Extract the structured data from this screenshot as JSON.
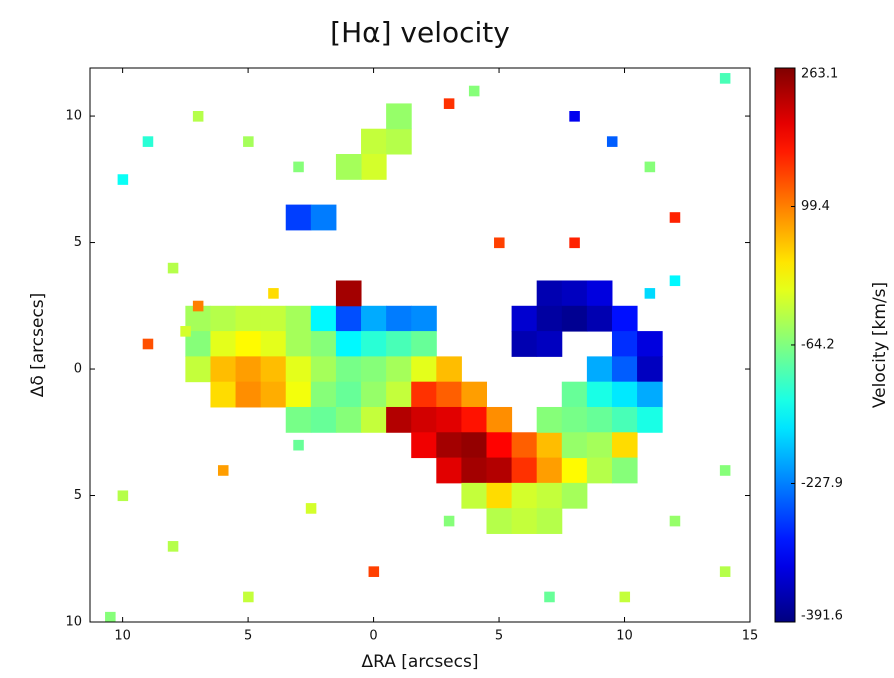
{
  "chart_data": {
    "type": "heatmap",
    "title": "[Hα] velocity",
    "x_label": "ΔRA [arcsecs]",
    "y_label": "Δδ [arcsecs]",
    "colorbar_label": "Velocity [km/s]",
    "colormap": "jet",
    "xlim": [
      -11.3,
      15
    ],
    "ylim": [
      -10,
      11.9
    ],
    "xticks": [
      {
        "value": -10,
        "label": "10"
      },
      {
        "value": -5,
        "label": "5"
      },
      0,
      5,
      10,
      15
    ],
    "yticks": [
      {
        "value": -10,
        "label": "10"
      },
      {
        "value": -5,
        "label": "5"
      },
      0,
      5,
      10
    ],
    "clim": [
      -391.6,
      263.1
    ],
    "cticks": [
      263.1,
      99.4,
      -64.2,
      -227.9,
      -391.6
    ],
    "series": [
      {
        "x": [
          -7,
          -6,
          -5,
          -4,
          -3,
          -2,
          -1,
          0,
          1,
          2,
          -7,
          -6,
          -5,
          -4,
          -3,
          -2,
          -1,
          0,
          1,
          2,
          -7,
          -6,
          -5,
          -4,
          -3,
          -2,
          -1,
          0,
          1,
          2,
          3,
          -6,
          -5,
          -4,
          -3,
          -2,
          -1,
          0,
          1,
          2,
          3,
          4,
          -3,
          -2,
          -1,
          0,
          1,
          2,
          3,
          4,
          5,
          2,
          3,
          4,
          5,
          6,
          7,
          3,
          4,
          5,
          6,
          7,
          8,
          4,
          5,
          6,
          7,
          8,
          5,
          6,
          7,
          -1,
          7,
          8,
          9,
          6,
          7,
          8,
          9,
          10,
          6,
          7,
          10,
          11,
          9,
          10,
          11,
          8,
          9,
          10,
          11,
          7,
          8,
          9,
          10,
          11,
          8,
          9,
          10,
          9,
          10,
          0,
          1,
          0,
          -1,
          1,
          -3,
          -2
        ],
        "y": [
          2,
          2,
          2,
          2,
          2,
          2,
          2,
          2,
          2,
          2,
          1,
          1,
          1,
          1,
          1,
          1,
          1,
          1,
          1,
          1,
          0,
          0,
          0,
          0,
          0,
          0,
          0,
          0,
          0,
          0,
          0,
          -1,
          -1,
          -1,
          -1,
          -1,
          -1,
          -1,
          -1,
          -1,
          -1,
          -1,
          -2,
          -2,
          -2,
          -2,
          -2,
          -2,
          -2,
          -2,
          -2,
          -3,
          -3,
          -3,
          -3,
          -3,
          -3,
          -4,
          -4,
          -4,
          -4,
          -4,
          -4,
          -5,
          -5,
          -5,
          -5,
          -5,
          -6,
          -6,
          -6,
          3,
          3,
          3,
          3,
          2,
          2,
          2,
          2,
          2,
          1,
          1,
          1,
          1,
          0,
          0,
          0,
          -1,
          -1,
          -1,
          -1,
          -2,
          -2,
          -2,
          -2,
          -2,
          -3,
          -3,
          -3,
          -4,
          -4,
          9,
          9,
          8,
          8,
          10,
          6,
          6
        ],
        "values": [
          -40,
          -30,
          -20,
          -20,
          -40,
          -150,
          -260,
          -200,
          -230,
          -220,
          -60,
          0,
          20,
          0,
          -40,
          -60,
          -150,
          -120,
          -100,
          -80,
          -20,
          60,
          80,
          60,
          0,
          -40,
          -70,
          -60,
          -40,
          0,
          60,
          40,
          90,
          70,
          10,
          -60,
          -80,
          -50,
          -20,
          150,
          120,
          80,
          -70,
          -80,
          -60,
          -20,
          230,
          210,
          200,
          170,
          90,
          190,
          240,
          250,
          180,
          120,
          60,
          200,
          240,
          230,
          150,
          80,
          20,
          -20,
          40,
          -10,
          -20,
          -40,
          -30,
          -20,
          -30,
          240,
          -360,
          -350,
          -330,
          -340,
          -370,
          -380,
          -360,
          -300,
          -360,
          -350,
          -280,
          -330,
          -200,
          -250,
          -350,
          -80,
          -130,
          -160,
          -200,
          -60,
          -70,
          -80,
          -100,
          -130,
          -50,
          -40,
          40,
          -30,
          -60,
          -20,
          -30,
          -10,
          -40,
          -50,
          -270,
          -230
        ]
      },
      {
        "x": [
          -9,
          -7,
          -10,
          -8,
          -7,
          -7.5,
          -9,
          -4,
          -5,
          -3,
          3,
          4,
          8,
          9.5,
          11,
          12,
          8,
          5,
          12,
          11,
          14,
          -6,
          -10,
          -8,
          -5,
          0,
          3,
          7,
          12,
          14,
          10,
          -10.5,
          -3,
          -2.5,
          14
        ],
        "y": [
          9,
          10,
          7.5,
          4,
          2.5,
          1.5,
          1,
          3,
          9,
          8,
          10.5,
          11,
          10,
          9,
          8,
          6,
          5,
          5,
          3.5,
          3,
          11.5,
          -4,
          -5,
          -7,
          -9,
          -8,
          -6,
          -9,
          -6,
          -4,
          -9,
          -9.8,
          -3,
          -5.5,
          -8
        ],
        "values": [
          -120,
          -30,
          -140,
          -30,
          100,
          -10,
          130,
          40,
          -40,
          -60,
          150,
          -60,
          -320,
          -250,
          -60,
          160,
          160,
          140,
          -150,
          -170,
          -100,
          80,
          -30,
          -30,
          -20,
          140,
          -60,
          -80,
          -50,
          -60,
          -20,
          -60,
          -80,
          -10,
          -30
        ]
      }
    ]
  }
}
